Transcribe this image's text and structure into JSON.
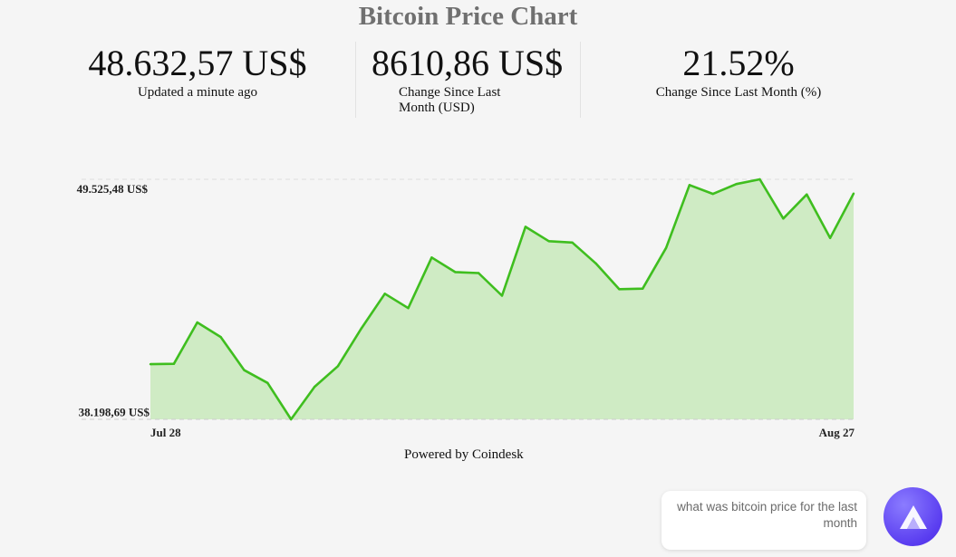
{
  "page": {
    "title": "Bitcoin Price Chart",
    "powered_by": "Powered by Coindesk"
  },
  "stats": {
    "price": {
      "value": "48.632,57 US$",
      "label": "Updated a minute ago"
    },
    "change_usd": {
      "value": "8610,86 US$",
      "label": "Change Since Last Month (USD)"
    },
    "change_pct": {
      "value": "21.52%",
      "label": "Change Since Last Month (%)"
    }
  },
  "chart_data": {
    "type": "area",
    "title": "",
    "xlabel": "",
    "ylabel": "",
    "x_tick_labels": [
      "Jul 28",
      "Aug 27"
    ],
    "y_tick_labels": [
      "49.525,48 US$",
      "38.198,69 US$"
    ],
    "y_ticks": [
      49525.48,
      38198.69
    ],
    "ylim": [
      37800,
      49990
    ],
    "grid": false,
    "legend": "none",
    "colors": {
      "line": "#3fbe1f",
      "fill": "#cfebc4",
      "baseline": "#cccccc"
    },
    "values": [
      40600,
      40620,
      42720,
      41980,
      40300,
      39650,
      37800,
      39450,
      40500,
      42420,
      44180,
      43450,
      46020,
      45280,
      45230,
      44080,
      47580,
      46850,
      46780,
      45720,
      44410,
      44440,
      46510,
      49700,
      49250,
      49750,
      49990,
      48000,
      49220,
      47010,
      49270
    ]
  },
  "assistant": {
    "message": "what was bitcoin price for the last month",
    "icon": "assistant-logo-icon"
  }
}
